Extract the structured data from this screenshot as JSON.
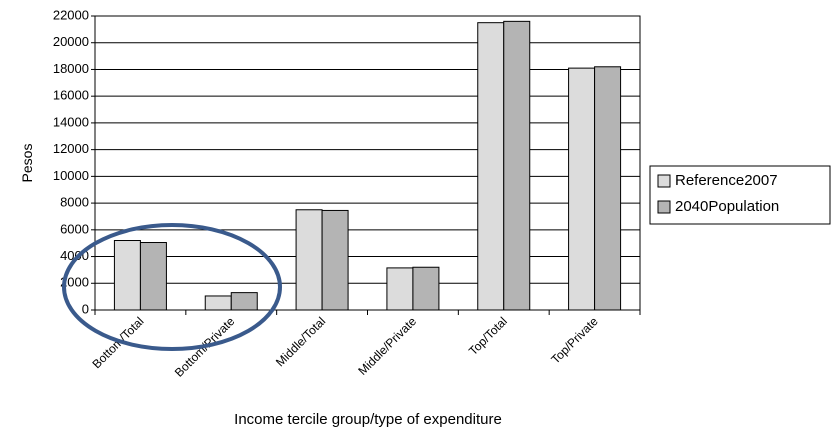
{
  "chart_data": {
    "type": "bar",
    "x_label": "Income tercile group/type of expenditure",
    "y_label": "Pesos",
    "categories": [
      "Bottom/Total",
      "Bottom/Private",
      "Middle/Total",
      "Middle/Private",
      "Top/Total",
      "Top/Private"
    ],
    "series": [
      {
        "name": "Reference2007",
        "color": "#dcdcdc",
        "values": [
          5200,
          1050,
          7500,
          3150,
          21500,
          18100
        ]
      },
      {
        "name": "2040Population",
        "color": "#b4b4b4",
        "values": [
          5050,
          1300,
          7450,
          3200,
          21600,
          18200
        ]
      }
    ],
    "ylim": [
      0,
      22000
    ],
    "yticks": [
      0,
      2000,
      4000,
      6000,
      8000,
      10000,
      12000,
      14000,
      16000,
      18000,
      20000,
      22000
    ],
    "grid": true,
    "legend": "right"
  }
}
